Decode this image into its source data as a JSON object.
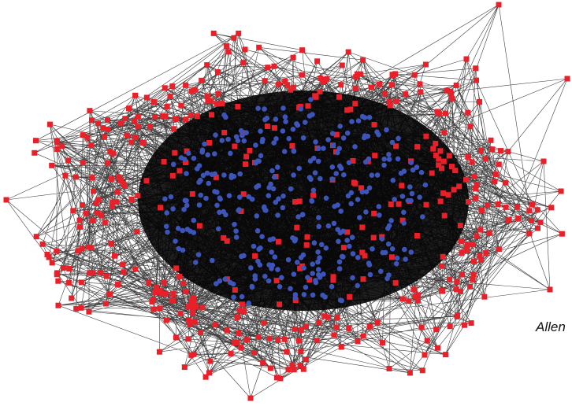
{
  "caption": "Allen",
  "colors": {
    "background": "#ffffff",
    "edge": "#000000",
    "node_square": "#e8202a",
    "node_circle": "#3d55b8"
  },
  "node_types": [
    "red-square",
    "blue-circle"
  ]
}
